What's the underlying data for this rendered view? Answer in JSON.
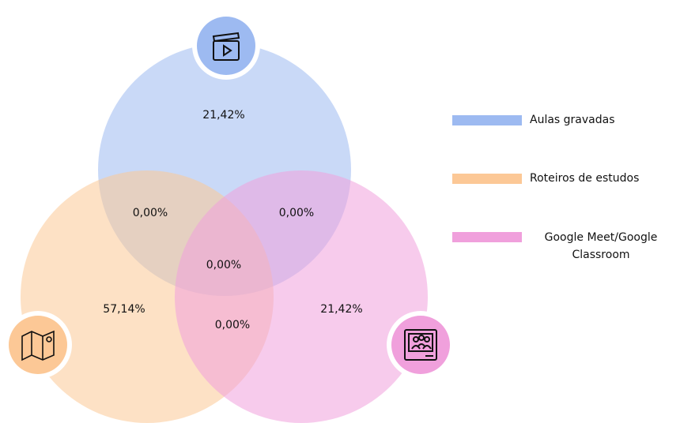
{
  "sets": [
    {
      "name": "Aulas gravadas",
      "color": "#9dbaf1"
    },
    {
      "name": "Roteiros de estudos",
      "color": "#fcc896"
    },
    {
      "name": "Google Meet/Google Classroom",
      "color": "#f0a0dc"
    }
  ],
  "regions": [
    {
      "label": "21,42%"
    },
    {
      "label": "0,00%"
    },
    {
      "label": "0,00%"
    },
    {
      "label": "0,00%"
    },
    {
      "label": "57,14%"
    },
    {
      "label": "0,00%"
    },
    {
      "label": "21,42%"
    }
  ]
}
